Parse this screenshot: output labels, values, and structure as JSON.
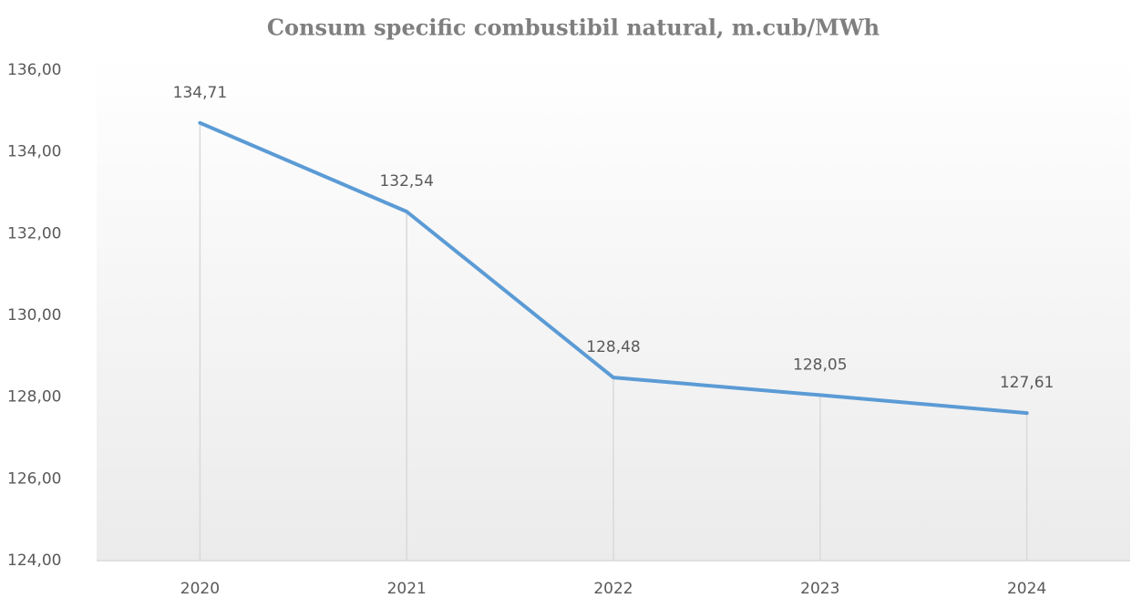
{
  "chart_data": {
    "type": "line",
    "title": "Consum specific combustibil natural, m.cub/MWh",
    "categories": [
      "2020",
      "2021",
      "2022",
      "2023",
      "2024"
    ],
    "series": [
      {
        "name": "Consum specific",
        "color": "#5b9bd5",
        "values": [
          134.71,
          132.54,
          128.48,
          128.05,
          127.61
        ],
        "value_labels": [
          "134,71",
          "132,54",
          "128,48",
          "128,05",
          "127,61"
        ]
      }
    ],
    "ylim": [
      124,
      136
    ],
    "yticks": [
      {
        "value": 124,
        "label": "124,00"
      },
      {
        "value": 126,
        "label": "126,00"
      },
      {
        "value": 128,
        "label": "128,00"
      },
      {
        "value": 130,
        "label": "130,00"
      },
      {
        "value": 132,
        "label": "132,00"
      },
      {
        "value": 134,
        "label": "134,00"
      },
      {
        "value": 136,
        "label": "136,00"
      }
    ],
    "drop_lines": true
  }
}
